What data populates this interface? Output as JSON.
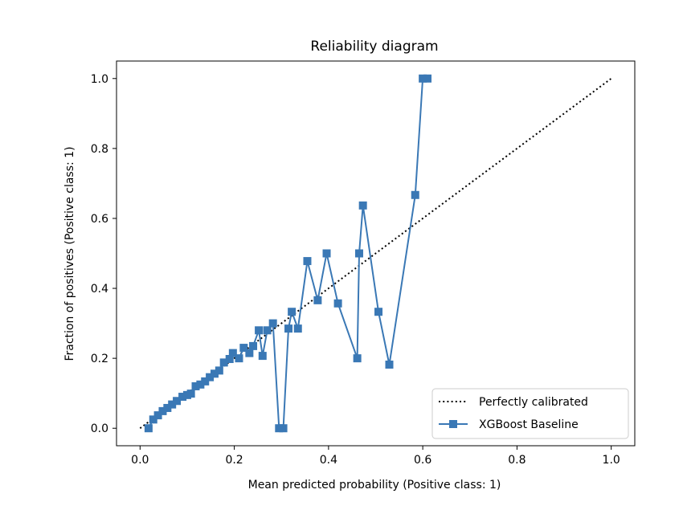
{
  "chart_data": {
    "type": "line",
    "title": "Reliability diagram",
    "xlabel": "Mean predicted probability (Positive class: 1)",
    "ylabel": "Fraction of positives (Positive class: 1)",
    "xlim": [
      -0.05,
      1.05
    ],
    "ylim": [
      -0.05,
      1.05
    ],
    "xticks": [
      0.0,
      0.2,
      0.4,
      0.6,
      0.8,
      1.0
    ],
    "xtick_labels": [
      "0.0",
      "0.2",
      "0.4",
      "0.6",
      "0.8",
      "1.0"
    ],
    "yticks": [
      0.0,
      0.2,
      0.4,
      0.6,
      0.8,
      1.0
    ],
    "ytick_labels": [
      "0.0",
      "0.2",
      "0.4",
      "0.6",
      "0.8",
      "1.0"
    ],
    "grid": false,
    "legend_position": "lower-right",
    "series": [
      {
        "name": "Perfectly calibrated",
        "style": "dotted",
        "color": "#000000",
        "x": [
          0.0,
          1.0
        ],
        "y": [
          0.0,
          1.0
        ]
      },
      {
        "name": "XGBoost Baseline",
        "style": "line-square-markers",
        "color": "#3a78b5",
        "x": [
          0.018,
          0.028,
          0.038,
          0.048,
          0.058,
          0.068,
          0.078,
          0.09,
          0.1,
          0.108,
          0.118,
          0.128,
          0.138,
          0.148,
          0.158,
          0.168,
          0.178,
          0.19,
          0.197,
          0.21,
          0.22,
          0.232,
          0.24,
          0.252,
          0.26,
          0.27,
          0.282,
          0.295,
          0.304,
          0.315,
          0.322,
          0.335,
          0.355,
          0.377,
          0.396,
          0.42,
          0.461,
          0.465,
          0.473,
          0.506,
          0.529,
          0.584,
          0.6,
          0.61
        ],
        "y": [
          0.0,
          0.025,
          0.037,
          0.049,
          0.058,
          0.068,
          0.078,
          0.09,
          0.095,
          0.099,
          0.12,
          0.125,
          0.134,
          0.146,
          0.156,
          0.165,
          0.188,
          0.198,
          0.215,
          0.2,
          0.23,
          0.215,
          0.235,
          0.28,
          0.207,
          0.28,
          0.3,
          0.0,
          0.0,
          0.285,
          0.333,
          0.285,
          0.478,
          0.366,
          0.5,
          0.357,
          0.2,
          0.5,
          0.637,
          0.333,
          0.182,
          0.667,
          1.0,
          1.0
        ]
      }
    ]
  }
}
